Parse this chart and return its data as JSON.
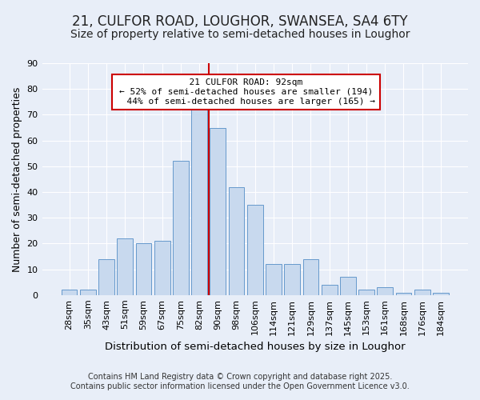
{
  "title": "21, CULFOR ROAD, LOUGHOR, SWANSEA, SA4 6TY",
  "subtitle": "Size of property relative to semi-detached houses in Loughor",
  "xlabel": "Distribution of semi-detached houses by size in Loughor",
  "ylabel": "Number of semi-detached properties",
  "categories": [
    "28sqm",
    "35sqm",
    "43sqm",
    "51sqm",
    "59sqm",
    "67sqm",
    "75sqm",
    "82sqm",
    "90sqm",
    "98sqm",
    "106sqm",
    "114sqm",
    "121sqm",
    "129sqm",
    "137sqm",
    "145sqm",
    "153sqm",
    "161sqm",
    "168sqm",
    "176sqm",
    "184sqm"
  ],
  "values": [
    2,
    2,
    14,
    22,
    20,
    21,
    52,
    75,
    65,
    42,
    35,
    12,
    12,
    14,
    4,
    7,
    2,
    3,
    1,
    2,
    1
  ],
  "bar_color": "#c8d9ee",
  "bar_edge_color": "#6699cc",
  "vline_color": "#cc0000",
  "annotation_box_color": "#cc0000",
  "property_label": "21 CULFOR ROAD: 92sqm",
  "pct_smaller": 52,
  "pct_larger": 44,
  "count_smaller": 194,
  "count_larger": 165,
  "ylim": [
    0,
    90
  ],
  "yticks": [
    0,
    10,
    20,
    30,
    40,
    50,
    60,
    70,
    80,
    90
  ],
  "background_color": "#e8eef8",
  "grid_color": "#ffffff",
  "footer": "Contains HM Land Registry data © Crown copyright and database right 2025.\nContains public sector information licensed under the Open Government Licence v3.0.",
  "title_fontsize": 12,
  "subtitle_fontsize": 10,
  "xlabel_fontsize": 9.5,
  "ylabel_fontsize": 9,
  "tick_fontsize": 8,
  "footer_fontsize": 7,
  "annot_fontsize": 8
}
